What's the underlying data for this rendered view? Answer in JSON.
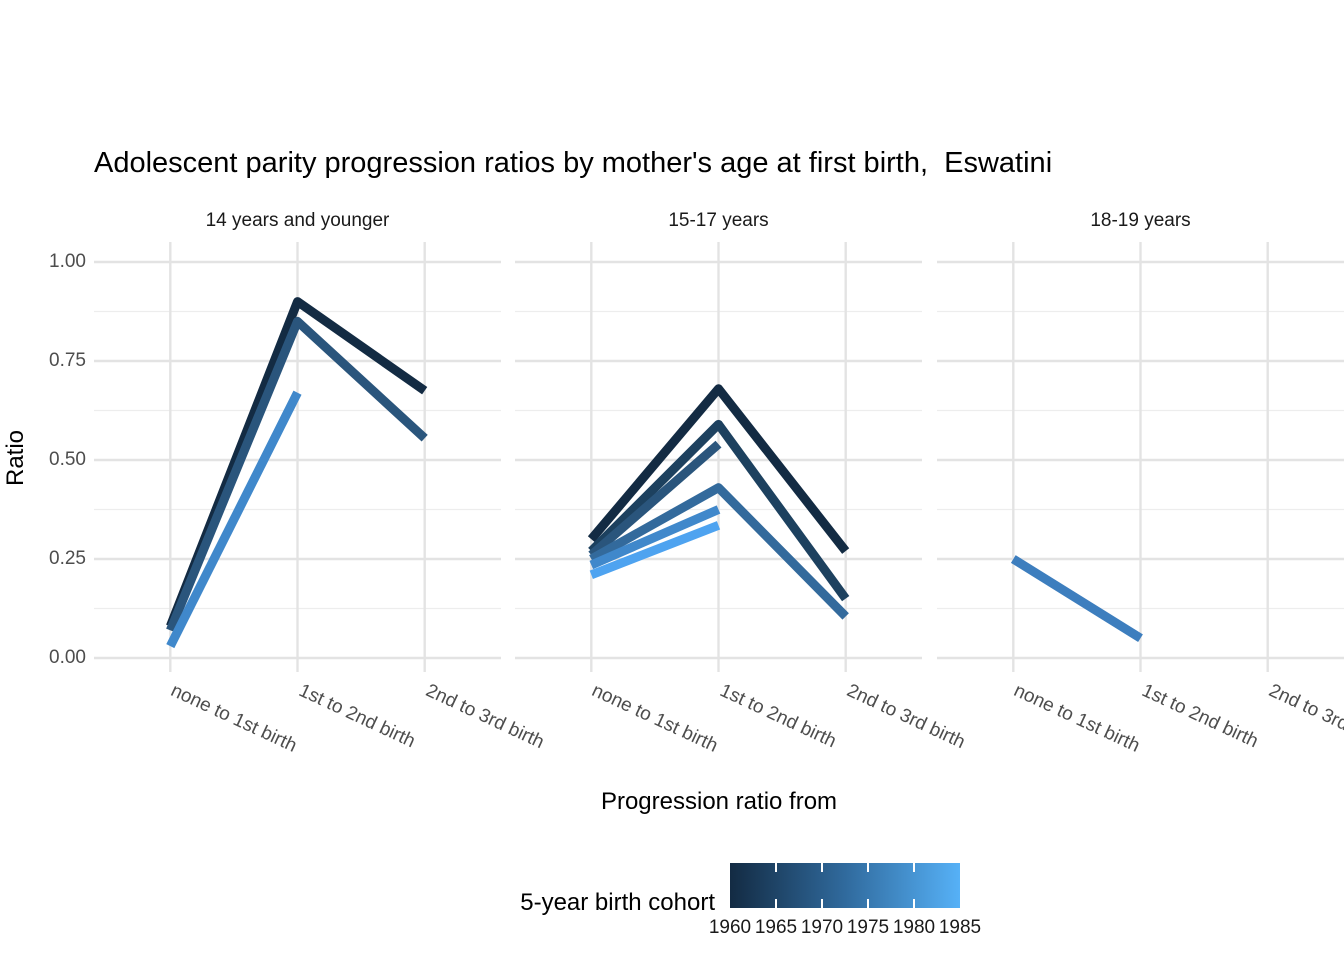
{
  "title": "Adolescent parity progression ratios by mother's age at first birth,  Eswatini",
  "axes": {
    "y_label": "Ratio",
    "x_label": "Progression ratio from",
    "y_ticks": [
      {
        "label": "1.00",
        "value": 1.0
      },
      {
        "label": "0.75",
        "value": 0.75
      },
      {
        "label": "0.50",
        "value": 0.5
      },
      {
        "label": "0.25",
        "value": 0.25
      },
      {
        "label": "0.00",
        "value": 0.0
      }
    ],
    "x_categories": [
      "none to 1st birth",
      "1st to 2nd birth",
      "2nd to 3rd birth"
    ]
  },
  "legend": {
    "title": "5-year birth cohort",
    "tick_labels": [
      "1960",
      "1965",
      "1970",
      "1975",
      "1980",
      "1985"
    ],
    "gradient_low": "#132B43",
    "gradient_mid": "#306A9D",
    "gradient_high": "#56B1F7"
  },
  "chart_data": {
    "type": "line",
    "faceted": true,
    "title": "Adolescent parity progression ratios by mother's age at first birth,  Eswatini",
    "xlabel": "Progression ratio from",
    "ylabel": "Ratio",
    "ylim": [
      0,
      1
    ],
    "y_major_gridlines": [
      0,
      0.25,
      0.5,
      0.75,
      1.0
    ],
    "y_minor_gridlines": [
      0.125,
      0.375,
      0.625,
      0.875
    ],
    "grid": true,
    "legend_position": "bottom",
    "color_scale": {
      "name": "5-year birth cohort",
      "low": "#132B43",
      "high": "#56B1F7",
      "domain": [
        1960,
        1985
      ]
    },
    "categories": [
      "none to 1st birth",
      "1st to 2nd birth",
      "2nd to 3rd birth"
    ],
    "facets": [
      {
        "label": "14 years and younger",
        "series": [
          {
            "name": "1960",
            "color": "#132B43",
            "values": [
              0.08,
              0.9,
              0.675
            ]
          },
          {
            "name": "1970",
            "color": "#2A557C",
            "values": [
              0.07,
              0.85,
              0.555
            ]
          },
          {
            "name": "1980",
            "color": "#4088CB",
            "values": [
              0.03,
              0.67,
              null
            ]
          }
        ]
      },
      {
        "label": "15-17 years",
        "series": [
          {
            "name": "1960",
            "color": "#132B43",
            "values": [
              0.3,
              0.68,
              0.27
            ]
          },
          {
            "name": "1965",
            "color": "#1D415F",
            "values": [
              0.27,
              0.59,
              0.15
            ]
          },
          {
            "name": "1970",
            "color": "#2A557C",
            "values": [
              0.26,
              0.54,
              null
            ]
          },
          {
            "name": "1975",
            "color": "#336A9C",
            "values": [
              0.25,
              0.43,
              0.105
            ]
          },
          {
            "name": "1980",
            "color": "#4088CB",
            "values": [
              0.235,
              0.375,
              null
            ]
          },
          {
            "name": "1985",
            "color": "#4EA3F0",
            "values": [
              0.21,
              0.335,
              null
            ]
          }
        ]
      },
      {
        "label": "18-19 years",
        "series": [
          {
            "name": "1980",
            "color": "#3D7EBE",
            "values": [
              0.25,
              0.05,
              null
            ]
          }
        ]
      }
    ]
  }
}
